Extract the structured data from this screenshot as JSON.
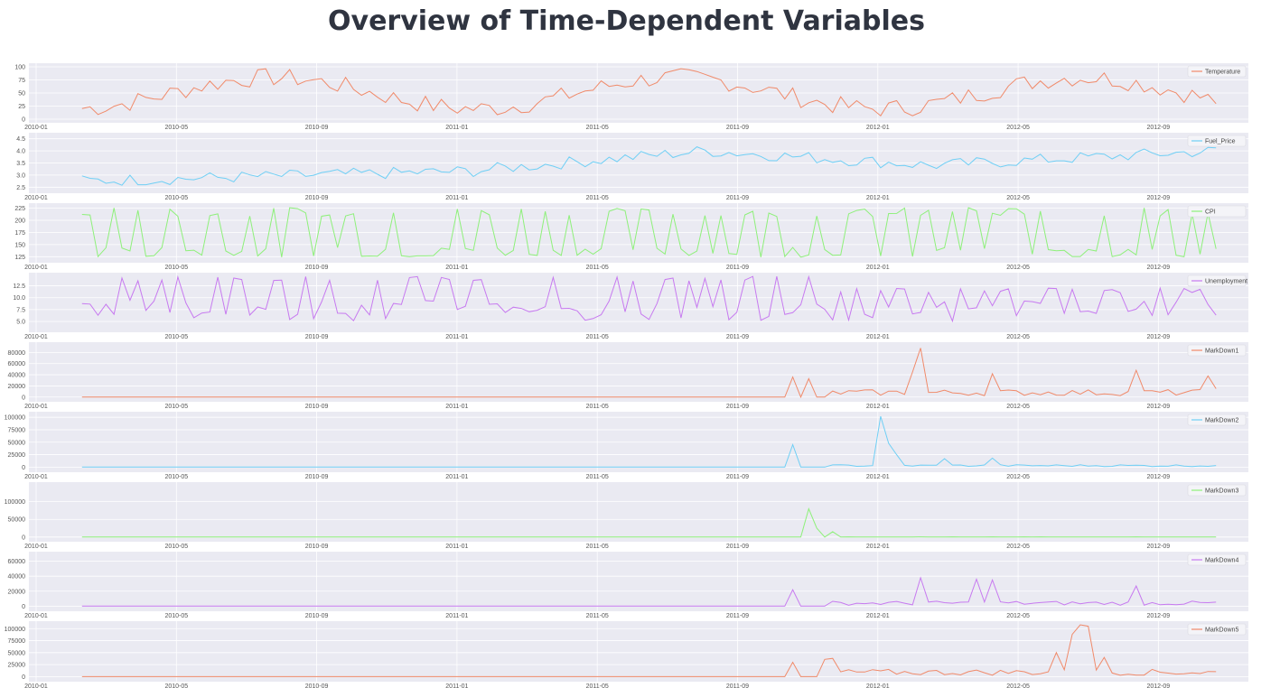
{
  "page": {
    "title": "Overview of Time-Dependent Variables"
  },
  "chart_data": [
    {
      "type": "line",
      "series": [
        {
          "name": "Temperature",
          "color": "#f08a6a"
        }
      ],
      "ylim": [
        0,
        100
      ],
      "yticks": [
        0,
        25,
        50,
        75,
        100
      ],
      "ytick_labels": [
        "0",
        "25",
        "50",
        "75",
        "100"
      ],
      "x_range": [
        "2010-01",
        "2012-11"
      ],
      "x_ticks": [
        "2010-01",
        "2010-05",
        "2010-09",
        "2011-01",
        "2011-05",
        "2011-09",
        "2012-01",
        "2012-05",
        "2012-09"
      ],
      "x_start": "2010-02",
      "x_end": "2012-10",
      "pattern": "seasonal",
      "base": [
        20,
        90
      ],
      "noise": 18,
      "grid": true,
      "legend": "upper right"
    },
    {
      "type": "line",
      "series": [
        {
          "name": "Fuel_Price",
          "color": "#6fcff5"
        }
      ],
      "ylim": [
        2.4,
        4.6
      ],
      "yticks": [
        2.5,
        3.0,
        3.5,
        4.0,
        4.5
      ],
      "ytick_labels": [
        "2.5",
        "3.0",
        "3.5",
        "4.0",
        "4.5"
      ],
      "x_range": [
        "2010-01",
        "2012-11"
      ],
      "x_ticks": [
        "2010-01",
        "2010-05",
        "2010-09",
        "2011-01",
        "2011-05",
        "2011-09",
        "2012-01",
        "2012-05",
        "2012-09"
      ],
      "x_start": "2010-02",
      "x_end": "2012-10",
      "pattern": "fuel",
      "noise": 0.25,
      "grid": true,
      "legend": "upper right"
    },
    {
      "type": "line",
      "series": [
        {
          "name": "CPI",
          "color": "#8ef07a"
        }
      ],
      "ylim": [
        120,
        228
      ],
      "yticks": [
        125,
        150,
        175,
        200,
        225
      ],
      "ytick_labels": [
        "125",
        "150",
        "175",
        "200",
        "225"
      ],
      "x_range": [
        "2010-01",
        "2012-11"
      ],
      "x_ticks": [
        "2010-01",
        "2010-05",
        "2010-09",
        "2011-01",
        "2011-05",
        "2011-09",
        "2012-01",
        "2012-05",
        "2012-09"
      ],
      "x_start": "2010-02",
      "x_end": "2012-10",
      "pattern": "alternate",
      "levels": [
        128,
        140,
        212,
        222
      ],
      "grid": true,
      "legend": "upper right"
    },
    {
      "type": "line",
      "series": [
        {
          "name": "Unemployment",
          "color": "#c77af0"
        }
      ],
      "ylim": [
        3.5,
        14.5
      ],
      "yticks": [
        5.0,
        7.5,
        10.0,
        12.5
      ],
      "ytick_labels": [
        "5.0",
        "7.5",
        "10.0",
        "12.5"
      ],
      "x_range": [
        "2010-01",
        "2012-11"
      ],
      "x_ticks": [
        "2010-01",
        "2010-05",
        "2010-09",
        "2011-01",
        "2011-05",
        "2011-09",
        "2012-01",
        "2012-05",
        "2012-09"
      ],
      "x_start": "2010-02",
      "x_end": "2012-10",
      "pattern": "unemp",
      "grid": true,
      "legend": "upper right"
    },
    {
      "type": "line",
      "series": [
        {
          "name": "MarkDown1",
          "color": "#f08a6a"
        }
      ],
      "ylim": [
        -2000,
        92000
      ],
      "yticks": [
        0,
        20000,
        40000,
        60000,
        80000
      ],
      "ytick_labels": [
        "0",
        "20000",
        "40000",
        "60000",
        "80000"
      ],
      "x_range": [
        "2010-01",
        "2012-11"
      ],
      "x_ticks": [
        "2010-01",
        "2010-05",
        "2010-09",
        "2011-01",
        "2011-05",
        "2011-09",
        "2012-01",
        "2012-05",
        "2012-09"
      ],
      "x_start": "2010-02",
      "x_end": "2012-10",
      "pattern": "markdown",
      "start_frac": 0.655,
      "base_level": 8000,
      "spikes": [
        [
          0.66,
          36000
        ],
        [
          0.675,
          33000
        ],
        [
          0.775,
          88000
        ],
        [
          0.77,
          45000
        ],
        [
          0.84,
          42000
        ],
        [
          0.975,
          48000
        ],
        [
          1.045,
          38000
        ],
        [
          1.3,
          15000
        ]
      ],
      "grid": true,
      "legend": "upper right"
    },
    {
      "type": "line",
      "series": [
        {
          "name": "MarkDown2",
          "color": "#6fcff5"
        }
      ],
      "ylim": [
        -3000,
        104000
      ],
      "yticks": [
        0,
        25000,
        50000,
        75000,
        100000
      ],
      "ytick_labels": [
        "0",
        "25000",
        "50000",
        "75000",
        "100000"
      ],
      "x_range": [
        "2010-01",
        "2012-11"
      ],
      "x_ticks": [
        "2010-01",
        "2010-05",
        "2010-09",
        "2011-01",
        "2011-05",
        "2011-09",
        "2012-01",
        "2012-05",
        "2012-09"
      ],
      "x_start": "2010-02",
      "x_end": "2012-10",
      "pattern": "markdown",
      "start_frac": 0.66,
      "base_level": 3000,
      "spikes": [
        [
          0.66,
          45000
        ],
        [
          0.74,
          102000
        ],
        [
          0.745,
          48000
        ],
        [
          0.755,
          25000
        ],
        [
          0.795,
          17000
        ],
        [
          0.845,
          18000
        ]
      ],
      "grid": true,
      "legend": "upper right"
    },
    {
      "type": "line",
      "series": [
        {
          "name": "MarkDown3",
          "color": "#8ef07a"
        }
      ],
      "ylim": [
        -3000,
        145000
      ],
      "yticks": [
        0,
        50000,
        100000
      ],
      "ytick_labels": [
        "0",
        "50000",
        "100000"
      ],
      "x_range": [
        "2010-01",
        "2012-11"
      ],
      "x_ticks": [
        "2010-01",
        "2010-05",
        "2010-09",
        "2011-01",
        "2011-05",
        "2011-09",
        "2012-01",
        "2012-05",
        "2012-09"
      ],
      "x_start": "2010-02",
      "x_end": "2012-10",
      "pattern": "markdown",
      "start_frac": 0.67,
      "base_level": 300,
      "spikes": [
        [
          0.673,
          140000
        ],
        [
          0.676,
          80000
        ],
        [
          0.68,
          25000
        ],
        [
          0.695,
          15000
        ]
      ],
      "grid": true,
      "legend": "upper right"
    },
    {
      "type": "line",
      "series": [
        {
          "name": "MarkDown4",
          "color": "#c77af0"
        }
      ],
      "ylim": [
        -2000,
        68000
      ],
      "yticks": [
        0,
        20000,
        40000,
        60000
      ],
      "ytick_labels": [
        "0",
        "20000",
        "40000",
        "60000"
      ],
      "x_range": [
        "2010-01",
        "2012-11"
      ],
      "x_ticks": [
        "2010-01",
        "2010-05",
        "2010-09",
        "2011-01",
        "2011-05",
        "2011-09",
        "2012-01",
        "2012-05",
        "2012-09"
      ],
      "x_start": "2010-02",
      "x_end": "2012-10",
      "pattern": "markdown",
      "start_frac": 0.655,
      "base_level": 4000,
      "spikes": [
        [
          0.656,
          22000
        ],
        [
          0.775,
          68000
        ],
        [
          0.78,
          38000
        ],
        [
          0.825,
          36000
        ],
        [
          0.84,
          35000
        ],
        [
          0.975,
          27000
        ]
      ],
      "grid": true,
      "legend": "upper right"
    },
    {
      "type": "line",
      "series": [
        {
          "name": "MarkDown5",
          "color": "#f08a6a"
        }
      ],
      "ylim": [
        -3000,
        108000
      ],
      "yticks": [
        0,
        25000,
        50000,
        75000,
        100000
      ],
      "ytick_labels": [
        "0",
        "25000",
        "50000",
        "75000",
        "100000"
      ],
      "x_range": [
        "2010-01",
        "2012-11"
      ],
      "x_ticks": [
        "2010-01",
        "2010-05",
        "2010-09",
        "2011-01",
        "2011-05",
        "2011-09",
        "2012-01",
        "2012-05",
        "2012-09"
      ],
      "x_start": "2010-02",
      "x_end": "2012-10",
      "pattern": "markdown",
      "start_frac": 0.655,
      "base_level": 9000,
      "spikes": [
        [
          0.656,
          30000
        ],
        [
          0.69,
          36000
        ],
        [
          0.695,
          38000
        ],
        [
          0.905,
          50000
        ],
        [
          0.915,
          88000
        ],
        [
          0.925,
          108000
        ],
        [
          0.935,
          105000
        ],
        [
          0.945,
          40000
        ]
      ],
      "grid": true,
      "legend": "upper right"
    }
  ]
}
